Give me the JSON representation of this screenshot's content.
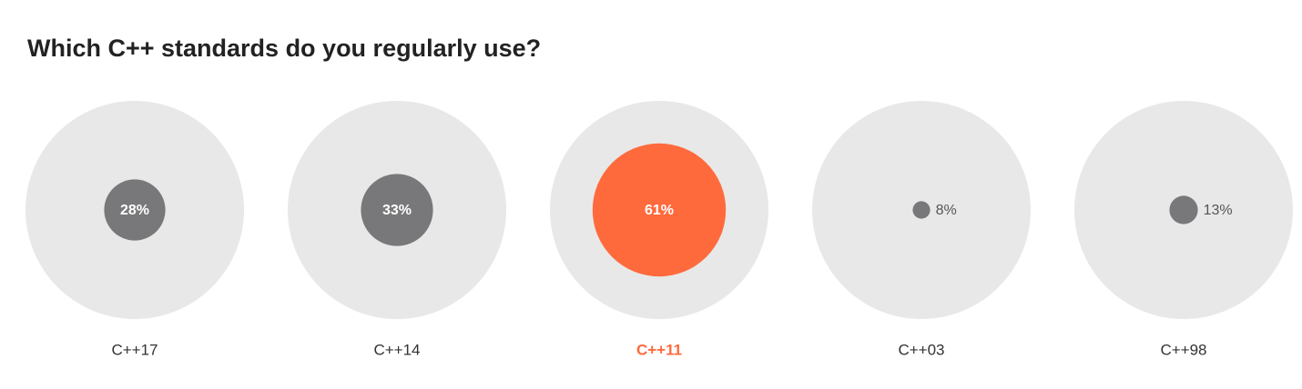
{
  "chart_data": {
    "type": "bubble",
    "title": "Which C++ standards do you regularly use?",
    "categories": [
      "C++17",
      "C++14",
      "C++11",
      "C++03",
      "C++98"
    ],
    "values": [
      28,
      33,
      61,
      8,
      13
    ],
    "value_labels": [
      "28%",
      "33%",
      "61%",
      "8%",
      "13%"
    ],
    "colors": [
      "#78787a",
      "#78787a",
      "#ff6a3d",
      "#78787a",
      "#78787a"
    ],
    "label_colors": [
      "#333333",
      "#333333",
      "#ff6a3d",
      "#333333",
      "#333333"
    ],
    "label_weights": [
      "normal",
      "normal",
      "bold",
      "normal",
      "normal"
    ],
    "range": [
      0,
      100
    ],
    "background_color": "#e8e8e8"
  }
}
